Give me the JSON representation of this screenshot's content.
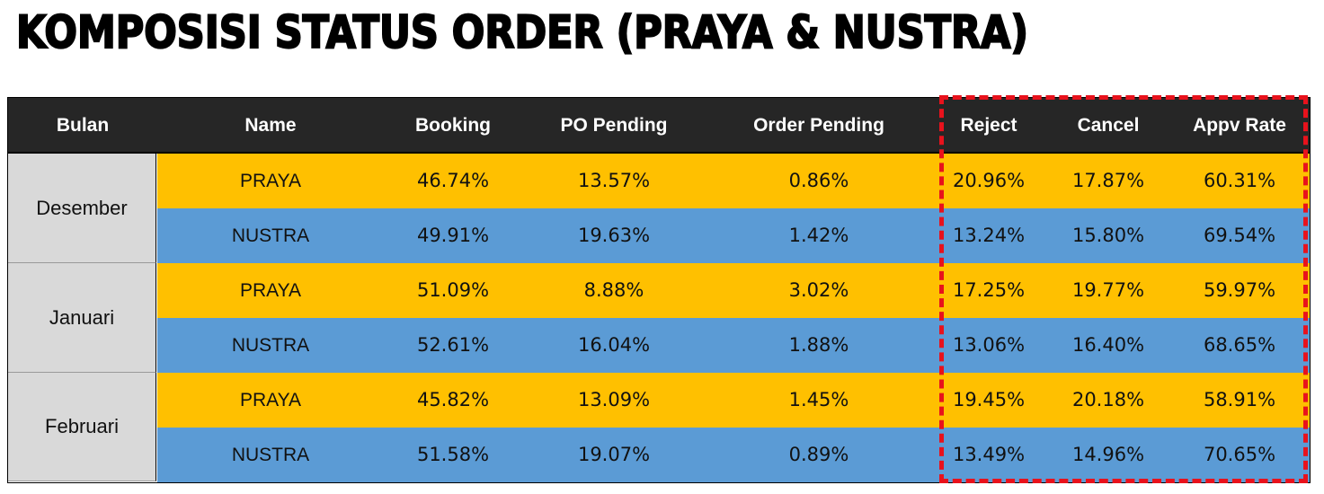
{
  "title": "KOMPOSISI STATUS ORDER (PRAYA & NUSTRA)",
  "chart_data": {
    "type": "table",
    "title": "KOMPOSISI STATUS ORDER (PRAYA & NUSTRA)",
    "columns": [
      "Bulan",
      "Name",
      "Booking",
      "PO Pending",
      "Order Pending",
      "Reject",
      "Cancel",
      "Appv Rate"
    ],
    "highlighted_columns": [
      "Reject",
      "Cancel",
      "Appv Rate"
    ],
    "colors": {
      "header_bg": "#262626",
      "praya_bg": "#ffc000",
      "nustra_bg": "#5b9bd5",
      "bulan_bg": "#d9d9d9",
      "highlight_border": "#e8121c"
    },
    "groups": [
      {
        "bulan": "Desember",
        "rows": [
          {
            "name": "PRAYA",
            "values": [
              "46.74%",
              "13.57%",
              "0.86%",
              "20.96%",
              "17.87%",
              "60.31%"
            ]
          },
          {
            "name": "NUSTRA",
            "values": [
              "49.91%",
              "19.63%",
              "1.42%",
              "13.24%",
              "15.80%",
              "69.54%"
            ]
          }
        ]
      },
      {
        "bulan": "Januari",
        "rows": [
          {
            "name": "PRAYA",
            "values": [
              "51.09%",
              "8.88%",
              "3.02%",
              "17.25%",
              "19.77%",
              "59.97%"
            ]
          },
          {
            "name": "NUSTRA",
            "values": [
              "52.61%",
              "16.04%",
              "1.88%",
              "13.06%",
              "16.40%",
              "68.65%"
            ]
          }
        ]
      },
      {
        "bulan": "Februari",
        "rows": [
          {
            "name": "PRAYA",
            "values": [
              "45.82%",
              "13.09%",
              "1.45%",
              "19.45%",
              "20.18%",
              "58.91%"
            ]
          },
          {
            "name": "NUSTRA",
            "values": [
              "51.58%",
              "19.07%",
              "0.89%",
              "13.49%",
              "14.96%",
              "70.65%"
            ]
          }
        ]
      }
    ]
  }
}
